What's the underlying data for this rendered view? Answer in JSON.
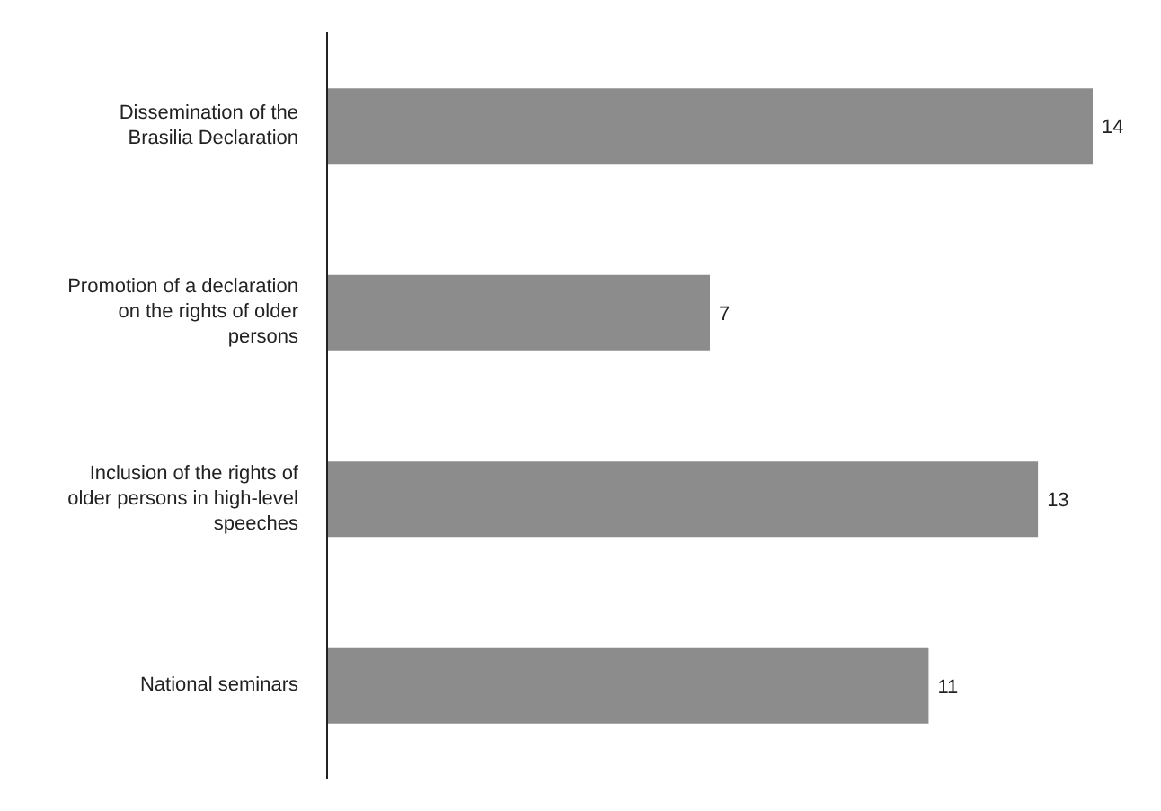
{
  "chart_data": {
    "type": "bar",
    "orientation": "horizontal",
    "categories": [
      "Dissemination of the Brasilia Declaration",
      "Promotion of a declaration on the rights of older persons",
      "Inclusion of the rights of older persons in high-level speeches",
      "National seminars"
    ],
    "values": [
      14,
      7,
      13,
      11
    ],
    "color": "#8c8c8c",
    "data_labels": true,
    "grid": false,
    "legend": false
  }
}
